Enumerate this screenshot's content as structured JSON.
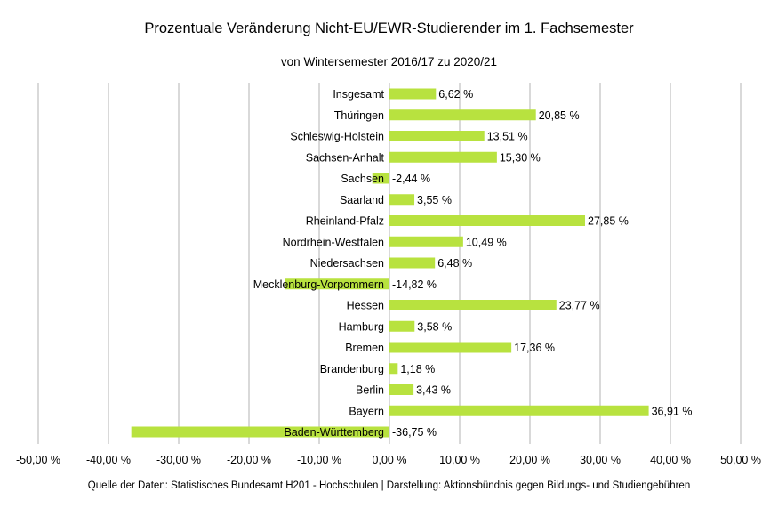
{
  "chart_data": {
    "type": "bar",
    "orientation": "horizontal",
    "title": "Prozentuale Veränderung Nicht-EU/EWR-Studierender im 1. Fachsemester",
    "subtitle": "von Wintersemester 2016/17 zu 2020/21",
    "categories": [
      "Insgesamt",
      "Thüringen",
      "Schleswig-Holstein",
      "Sachsen-Anhalt",
      "Sachsen",
      "Saarland",
      "Rheinland-Pfalz",
      "Nordrhein-Westfalen",
      "Niedersachsen",
      "Mecklenburg-Vorpommern",
      "Hessen",
      "Hamburg",
      "Bremen",
      "Brandenburg",
      "Berlin",
      "Bayern",
      "Baden-Württemberg"
    ],
    "values": [
      6.62,
      20.85,
      13.51,
      15.3,
      -2.44,
      3.55,
      27.85,
      10.49,
      6.48,
      -14.82,
      23.77,
      3.58,
      17.36,
      1.18,
      3.43,
      36.91,
      -36.75
    ],
    "data_labels": [
      "6,62 %",
      "20,85 %",
      "13,51 %",
      "15,30 %",
      "-2,44 %",
      "3,55 %",
      "27,85 %",
      "10,49 %",
      "6,48 %",
      "-14,82 %",
      "23,77 %",
      "3,58 %",
      "17,36 %",
      "1,18 %",
      "3,43 %",
      "36,91 %",
      "-36,75 %"
    ],
    "xlim": [
      -50,
      50
    ],
    "x_ticks": [
      -50,
      -40,
      -30,
      -20,
      -10,
      0,
      10,
      20,
      30,
      40,
      50
    ],
    "x_tick_labels": [
      "-50,00 %",
      "-40,00 %",
      "-30,00 %",
      "-20,00 %",
      "-10,00 %",
      "0,00 %",
      "10,00 %",
      "20,00 %",
      "30,00 %",
      "40,00 %",
      "50,00 %"
    ],
    "grid": "vertical",
    "legend": "none",
    "bar_color": "#B8E23F",
    "grid_color": "#B3B3B3"
  },
  "footer": {
    "source": "Quelle der Daten: Statistisches Bundesamt H201 - Hochschulen  | Darstellung: Aktionsbündnis gegen Bildungs- und Studiengebühren"
  }
}
